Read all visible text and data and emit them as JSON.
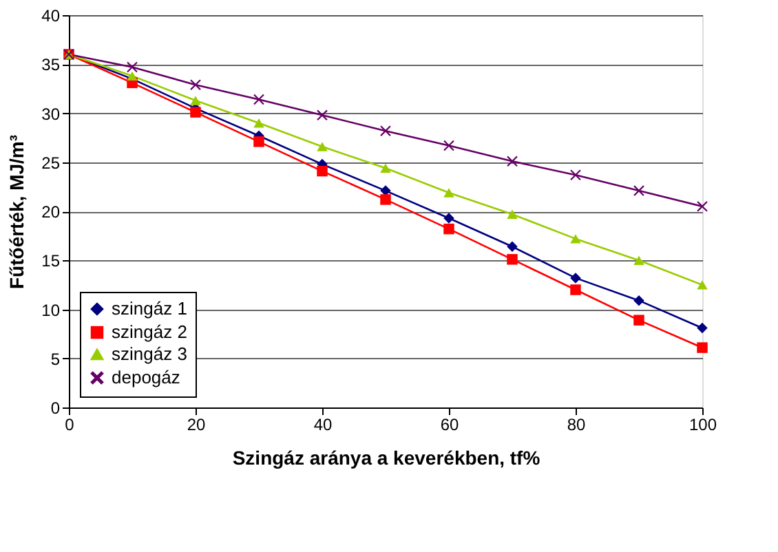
{
  "chart_data": {
    "type": "line",
    "xlabel": "Szingáz aránya a keverékben, tf%",
    "ylabel": "Fűtőérték, MJ/m³",
    "x": [
      0,
      10,
      20,
      30,
      40,
      50,
      60,
      70,
      80,
      90,
      100
    ],
    "series": [
      {
        "name": "szingáz 1",
        "color": "#000080",
        "marker": "diamond",
        "values": [
          36,
          33.5,
          30.5,
          27.7,
          24.8,
          22.1,
          19.3,
          16.4,
          13.2,
          10.9,
          8.1
        ]
      },
      {
        "name": "szingáz 2",
        "color": "#ff0000",
        "marker": "square",
        "values": [
          36,
          33.1,
          30.1,
          27.1,
          24.1,
          21.2,
          18.2,
          15.1,
          12.0,
          8.9,
          6.1
        ]
      },
      {
        "name": "szingáz 3",
        "color": "#99cc00",
        "marker": "triangle",
        "values": [
          36,
          33.8,
          31.3,
          29.0,
          26.6,
          24.4,
          21.9,
          19.7,
          17.2,
          15.0,
          12.5
        ]
      },
      {
        "name": "depogáz",
        "color": "#660066",
        "marker": "cross",
        "values": [
          36,
          34.7,
          32.9,
          31.4,
          29.8,
          28.2,
          26.7,
          25.1,
          23.7,
          22.1,
          20.5
        ]
      }
    ],
    "xlim": [
      0,
      100
    ],
    "xticks": [
      0,
      20,
      40,
      60,
      80,
      100
    ],
    "ylim": [
      0,
      40
    ],
    "yticks": [
      0,
      5,
      10,
      15,
      20,
      25,
      30,
      35,
      40
    ],
    "grid": "y",
    "legend": "bottom left",
    "line_style": "solid"
  }
}
